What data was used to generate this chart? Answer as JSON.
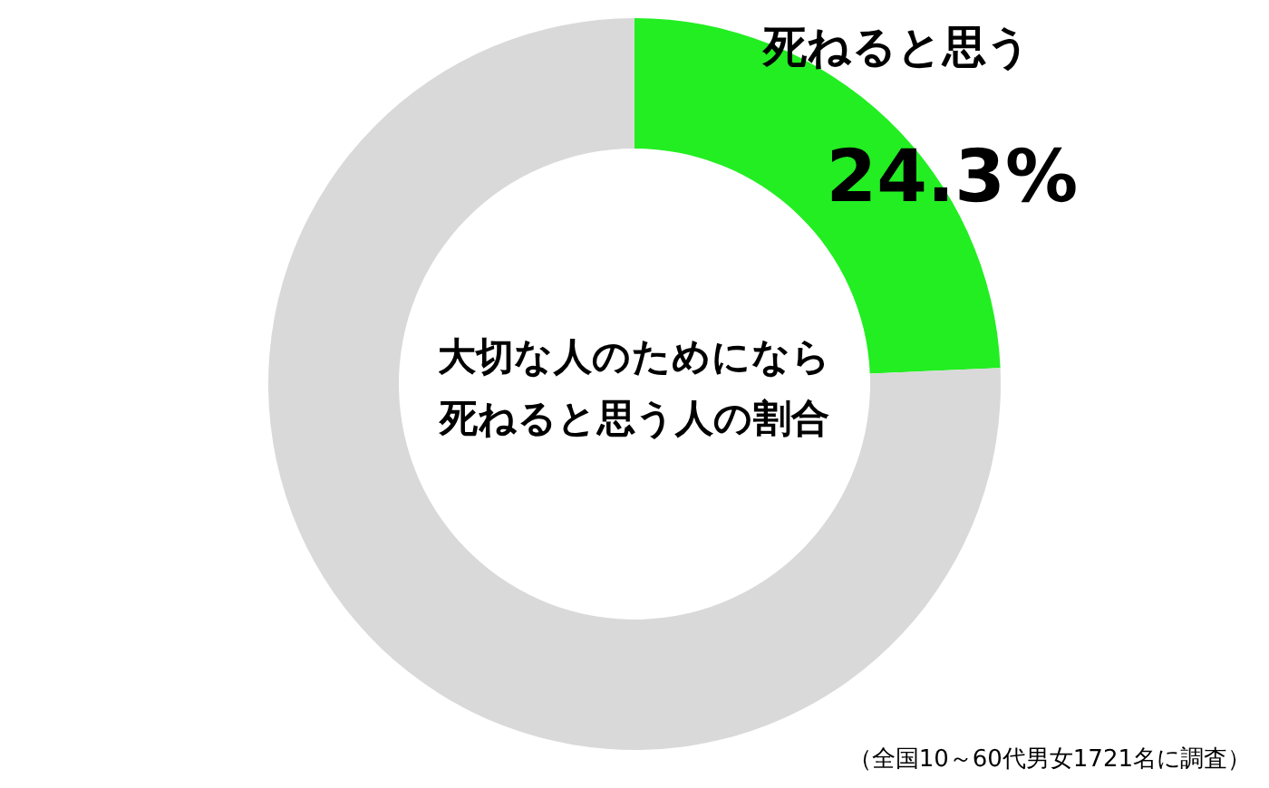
{
  "chart_data": {
    "type": "donut",
    "title": "大切な人のためになら死ねると思う人の割合",
    "categories": [
      "死ねると思う",
      null
    ],
    "values": [
      24.3,
      75.7
    ],
    "colors": [
      "#22ee22",
      "#d9d9d9"
    ],
    "value_labels": [
      "24.3%",
      null
    ],
    "annotations": [
      "（全国10～60代男女1721名に調査）"
    ]
  }
}
